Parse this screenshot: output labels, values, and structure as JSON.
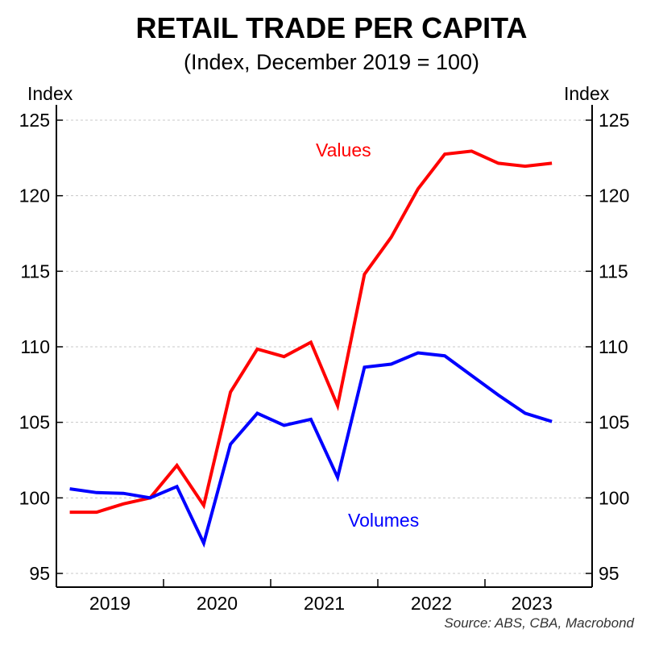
{
  "chart_data": {
    "type": "line",
    "title": "RETAIL TRADE PER CAPITA",
    "subtitle": "(Index, December 2019 = 100)",
    "ylabel_left": "Index",
    "ylabel_right": "Index",
    "ylim": [
      95,
      125
    ],
    "yticks": [
      95,
      100,
      105,
      110,
      115,
      120,
      125
    ],
    "xlim": [
      "2019-Q1",
      "2023-Q3"
    ],
    "xtick_labels": [
      "2019",
      "2020",
      "2021",
      "2022",
      "2023"
    ],
    "x": [
      "2019-Q1",
      "2019-Q2",
      "2019-Q3",
      "2019-Q4",
      "2020-Q1",
      "2020-Q2",
      "2020-Q3",
      "2020-Q4",
      "2021-Q1",
      "2021-Q2",
      "2021-Q3",
      "2021-Q4",
      "2022-Q1",
      "2022-Q2",
      "2022-Q3",
      "2022-Q4",
      "2023-Q1",
      "2023-Q2",
      "2023-Q3"
    ],
    "grid": true,
    "series": [
      {
        "name": "Values",
        "color": "#ff0000",
        "values": [
          99.05,
          99.05,
          99.6,
          100.0,
          102.15,
          99.5,
          107.0,
          109.85,
          109.35,
          110.3,
          106.1,
          114.8,
          117.25,
          120.45,
          122.75,
          122.95,
          122.15,
          121.95,
          122.15
        ]
      },
      {
        "name": "Volumes",
        "color": "#0000ff",
        "values": [
          100.6,
          100.35,
          100.3,
          100.0,
          100.75,
          97.0,
          103.55,
          105.6,
          104.8,
          105.2,
          101.35,
          108.65,
          108.85,
          109.6,
          109.4,
          108.1,
          106.8,
          105.6,
          105.05
        ]
      }
    ],
    "source": "Source: ABS, CBA, Macrobond"
  }
}
